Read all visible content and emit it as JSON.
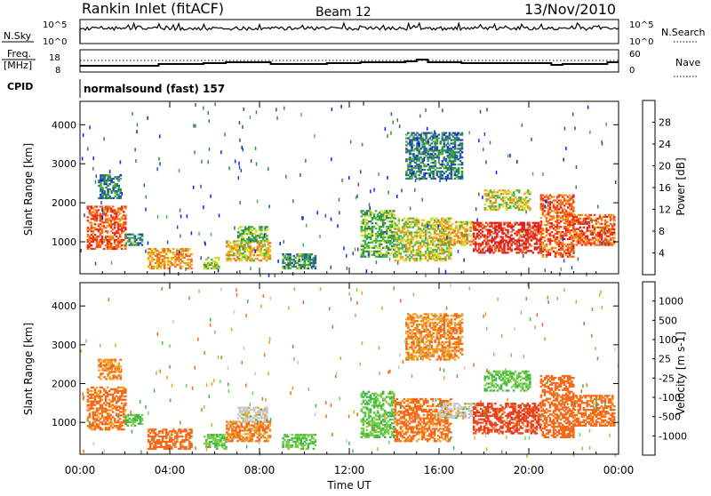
{
  "header": {
    "station": "Rankin Inlet (fitACF)",
    "beam": "Beam 12",
    "date": "13/Nov/2010"
  },
  "summary_panel": {
    "left_labels": {
      "nsky": "N.Sky",
      "freq_line1": "Freq.",
      "freq_line2": "[MHz]",
      "cpid": "CPID"
    },
    "right_labels": {
      "nsearch": "N.Search",
      "nave": "Nave"
    },
    "nsky_ticks": [
      "10^5",
      "10^0"
    ],
    "nsearch_ticks": [
      "10^5",
      "10^0"
    ],
    "freq_ticks": [
      "18",
      "8"
    ],
    "nave_ticks": [
      "60",
      "0"
    ],
    "cpid_text": "normalsound (fast) 157"
  },
  "x_axis": {
    "label": "Time UT",
    "ticks": [
      "00:00",
      "04:00",
      "08:00",
      "12:00",
      "16:00",
      "20:00",
      "00:00"
    ]
  },
  "colors": {
    "power_scale": [
      "#0a1cff",
      "#2b4fb0",
      "#2e8a4c",
      "#49b54b",
      "#d9d92a",
      "#f39c1a",
      "#f26a1d",
      "#ee2f1c",
      "#e01a1a"
    ],
    "velocity_scale": [
      "#e41a1c",
      "#ef3c1c",
      "#f36a1c",
      "#f5a01d",
      "#c8c8c8",
      "#3fb54a",
      "#7bcf48",
      "#2e64b5",
      "#2040c8"
    ]
  },
  "chart_data": [
    {
      "type": "heatmap",
      "panel": "power",
      "ylabel": "Slant Range [km]",
      "yticks": [
        "1000",
        "2000",
        "3000",
        "4000"
      ],
      "ylim": [
        180,
        4600
      ],
      "xlim": [
        "00:00",
        "24:00"
      ],
      "colorbar": {
        "label": "Power [dB]",
        "ticks": [
          "4",
          "8",
          "12",
          "16",
          "20",
          "24",
          "28"
        ],
        "range": [
          0,
          32
        ]
      },
      "echo_regions": [
        {
          "t_start": 0.3,
          "t_end": 2.0,
          "r_start": 800,
          "r_end": 1900,
          "value": 24
        },
        {
          "t_start": 0.8,
          "t_end": 1.8,
          "r_start": 2100,
          "r_end": 2700,
          "value": 8
        },
        {
          "t_start": 2.0,
          "t_end": 2.8,
          "r_start": 900,
          "r_end": 1200,
          "value": 10
        },
        {
          "t_start": 3.0,
          "t_end": 5.0,
          "r_start": 300,
          "r_end": 800,
          "value": 20
        },
        {
          "t_start": 5.5,
          "t_end": 6.2,
          "r_start": 300,
          "r_end": 600,
          "value": 14
        },
        {
          "t_start": 6.5,
          "t_end": 8.5,
          "r_start": 500,
          "r_end": 1000,
          "value": 18
        },
        {
          "t_start": 7.0,
          "t_end": 8.3,
          "r_start": 1000,
          "r_end": 1400,
          "value": 12
        },
        {
          "t_start": 9.0,
          "t_end": 10.5,
          "r_start": 300,
          "r_end": 700,
          "value": 10
        },
        {
          "t_start": 12.5,
          "t_end": 14.0,
          "r_start": 600,
          "r_end": 1800,
          "value": 12
        },
        {
          "t_start": 14.0,
          "t_end": 16.5,
          "r_start": 500,
          "r_end": 1600,
          "value": 16
        },
        {
          "t_start": 16.0,
          "t_end": 17.5,
          "r_start": 900,
          "r_end": 1500,
          "value": 18
        },
        {
          "t_start": 17.5,
          "t_end": 20.5,
          "r_start": 700,
          "r_end": 1500,
          "value": 28
        },
        {
          "t_start": 20.5,
          "t_end": 22.0,
          "r_start": 600,
          "r_end": 2200,
          "value": 24
        },
        {
          "t_start": 22.0,
          "t_end": 23.8,
          "r_start": 900,
          "r_end": 1700,
          "value": 24
        },
        {
          "t_start": 18.0,
          "t_end": 20.0,
          "r_start": 1800,
          "r_end": 2300,
          "value": 16
        },
        {
          "t_start": 14.5,
          "t_end": 17.0,
          "r_start": 2600,
          "r_end": 3800,
          "value": 8
        }
      ]
    },
    {
      "type": "heatmap",
      "panel": "velocity",
      "ylabel": "Slant Range [km]",
      "yticks": [
        "1000",
        "2000",
        "3000",
        "4000"
      ],
      "ylim": [
        180,
        4600
      ],
      "xlim": [
        "00:00",
        "24:00"
      ],
      "colorbar": {
        "label": "Velocity [m s-1]",
        "ticks": [
          "-1000",
          "-500",
          "-100",
          "-25",
          "25",
          "100",
          "500",
          "1000"
        ]
      },
      "echo_regions": [
        {
          "t_start": 0.3,
          "t_end": 2.0,
          "r_start": 800,
          "r_end": 1900,
          "value": -150
        },
        {
          "t_start": 0.8,
          "t_end": 1.8,
          "r_start": 2100,
          "r_end": 2600,
          "value": -100
        },
        {
          "t_start": 2.0,
          "t_end": 2.8,
          "r_start": 900,
          "r_end": 1200,
          "value": 100
        },
        {
          "t_start": 3.0,
          "t_end": 5.0,
          "r_start": 300,
          "r_end": 800,
          "value": -200
        },
        {
          "t_start": 5.5,
          "t_end": 6.5,
          "r_start": 300,
          "r_end": 700,
          "value": 150
        },
        {
          "t_start": 6.5,
          "t_end": 8.5,
          "r_start": 500,
          "r_end": 1000,
          "value": -120
        },
        {
          "t_start": 7.0,
          "t_end": 8.3,
          "r_start": 1000,
          "r_end": 1400,
          "value": 0
        },
        {
          "t_start": 9.0,
          "t_end": 10.5,
          "r_start": 300,
          "r_end": 700,
          "value": 120
        },
        {
          "t_start": 12.5,
          "t_end": 14.0,
          "r_start": 600,
          "r_end": 1800,
          "value": 110
        },
        {
          "t_start": 14.0,
          "t_end": 16.5,
          "r_start": 500,
          "r_end": 1600,
          "value": -150
        },
        {
          "t_start": 16.0,
          "t_end": 17.5,
          "r_start": 1100,
          "r_end": 1500,
          "value": 0
        },
        {
          "t_start": 17.5,
          "t_end": 20.5,
          "r_start": 700,
          "r_end": 1500,
          "value": -700
        },
        {
          "t_start": 20.5,
          "t_end": 22.0,
          "r_start": 600,
          "r_end": 2200,
          "value": -300
        },
        {
          "t_start": 22.0,
          "t_end": 23.8,
          "r_start": 900,
          "r_end": 1700,
          "value": -200
        },
        {
          "t_start": 18.0,
          "t_end": 20.0,
          "r_start": 1800,
          "r_end": 2300,
          "value": 110
        },
        {
          "t_start": 14.5,
          "t_end": 17.0,
          "r_start": 2600,
          "r_end": 3800,
          "value": -100
        }
      ]
    }
  ]
}
